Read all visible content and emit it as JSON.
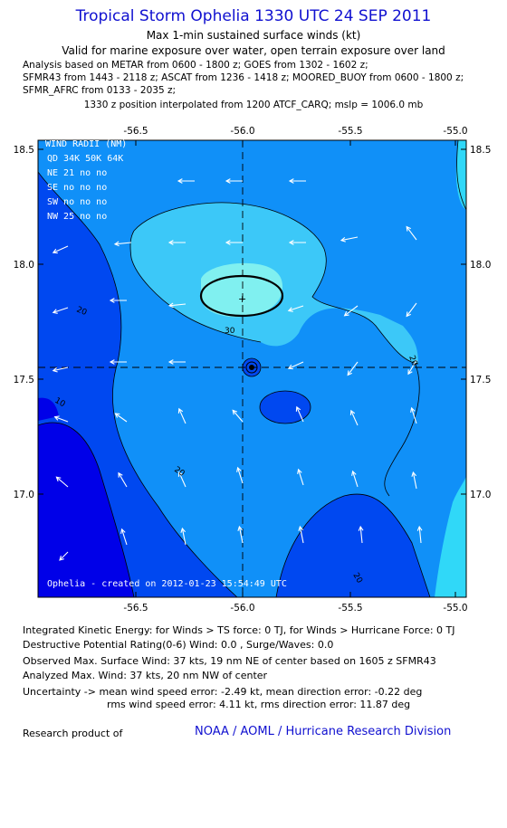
{
  "header": {
    "title": "Tropical Storm Ophelia 1330 UTC 24 SEP 2011",
    "subtitle": "Max 1-min sustained surface winds (kt)",
    "validity": "Valid for marine exposure over water, open terrain exposure over land",
    "analysis_lines": [
      "Analysis based on METAR from 0600 - 1800 z; GOES from 1302 - 1602 z;",
      "SFMR43 from 1443 - 2118 z; ASCAT from 1236 - 1418 z; MOORED_BUOY from 0600 - 1800 z;",
      "SFMR_AFRC from 0133 - 2035 z;"
    ],
    "position_note": "1330 z position interpolated from 1200 ATCF_CARQ; mslp = 1006.0 mb"
  },
  "map": {
    "lon_ticks": [
      "-56.5",
      "-56.0",
      "-55.5",
      "-55.0"
    ],
    "lat_ticks": [
      "18.5",
      "18.0",
      "17.5",
      "17.0"
    ],
    "contour_labels": [
      "20",
      "30",
      "10",
      "20",
      "20",
      "20"
    ],
    "watermark": "Ophelia - created on 2012-01-23 15:54:49 UTC",
    "wind_radii": {
      "header": "WIND RADII (NM)",
      "columns": "QD  34K  50K  64K",
      "rows": [
        "NE  21   no   no",
        "SE  no   no   no",
        "SW  no   no   no",
        "NW  25   no   no"
      ]
    },
    "colors": {
      "band_0_10": "#0000e8",
      "band_10_20": "#0048f0",
      "band_20_30": "#1090f8",
      "band_30_35": "#3cc8f8",
      "band_35_plus": "#80f0f0",
      "high_east": "#30d8f8"
    }
  },
  "footer": {
    "ike": "Integrated Kinetic Energy:  for Winds > TS force: 0 TJ,  for Winds > Hurricane Force: 0 TJ",
    "dpr": "Destructive Potential Rating(0-6)   Wind: 0.0 , Surge/Waves: 0.0",
    "obs_max": "Observed Max. Surface Wind: 37 kts, 19 nm NE of center based on 1605 z SFMR43",
    "ana_max": "Analyzed Max. Wind: 37 kts, 20 nm NW of center",
    "unc1": "Uncertainty -> mean wind speed error:  -2.49 kt,   mean direction error:  -0.22 deg",
    "unc2": "rms wind speed error: 4.11 kt,   rms direction error: 11.87 deg",
    "research": "Research product of",
    "org": "NOAA / AOML / Hurricane Research Division"
  }
}
